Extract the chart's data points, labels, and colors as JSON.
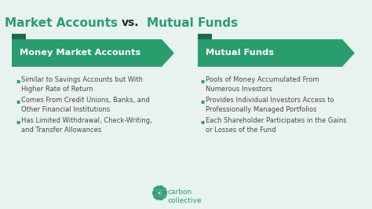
{
  "background_color": "#e8f2ef",
  "title_green": "#2a9d6e",
  "title_dark": "#1a2e2a",
  "left_header": "Money Market Accounts",
  "right_header": "Mutual Funds",
  "header_bg_color": "#2a9d6e",
  "header_text_color": "#ffffff",
  "dark_tab_color": "#1a6b4a",
  "bullet_color": "#2a9d6e",
  "text_color": "#4a4a4a",
  "left_bullets": [
    "Similar to Savings Accounts but With\nHigher Rate of Return",
    "Comes From Credit Unions, Banks, and\nOther Financial Institutions",
    "Has Limited Withdrawal, Check-Writing,\nand Transfer Allowances"
  ],
  "right_bullets": [
    "Pools of Money Accumulated From\nNumerous Investors",
    "Provides Individual Investors Access to\nProfessionally Managed Portfolios",
    "Each Shareholder Participates in the Gains\nor Losses of the Fund"
  ],
  "logo_text": "carbon\ncollective",
  "logo_color": "#2a9d6e",
  "fig_w": 4.74,
  "fig_h": 2.66,
  "dpi": 100
}
